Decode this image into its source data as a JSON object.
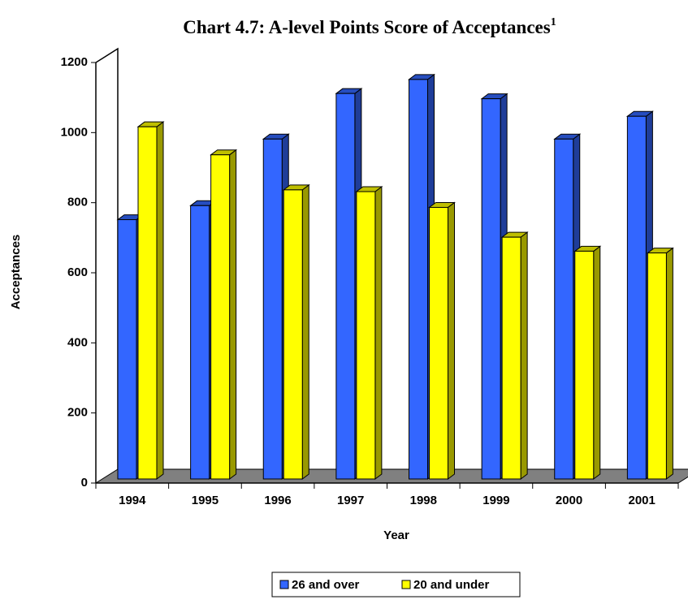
{
  "chart_data": {
    "type": "bar3d",
    "title": "Chart 4.7: A-level Points Score of Acceptances",
    "title_superscript": "1",
    "x_label": "Year",
    "y_label": "Acceptances",
    "categories": [
      "1994",
      "1995",
      "1996",
      "1997",
      "1998",
      "1999",
      "2000",
      "2001"
    ],
    "series": [
      {
        "name": "26 and over",
        "color": "#3366ff",
        "values": [
          740,
          780,
          970,
          1100,
          1140,
          1085,
          970,
          1035
        ]
      },
      {
        "name": "20 and under",
        "color": "#ffff00",
        "values": [
          1005,
          925,
          825,
          820,
          775,
          690,
          650,
          645
        ]
      }
    ],
    "ylim": [
      0,
      1200
    ],
    "yticks": [
      0,
      200,
      400,
      600,
      800,
      1000,
      1200
    ],
    "grid": false,
    "legend": "bottom"
  }
}
